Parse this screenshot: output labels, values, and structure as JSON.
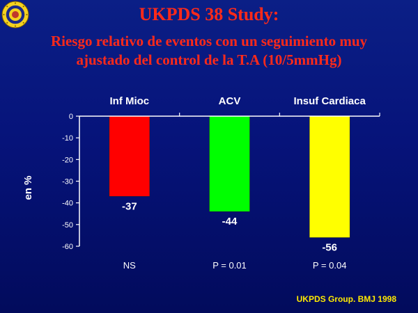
{
  "title": "UKPDS 38 Study:",
  "subtitle_lines": [
    "Riesgo relativo de eventos con un seguimiento muy",
    "ajustado del control de la T.A (10/5mmHg)"
  ],
  "source": "UKPDS Group. BMJ 1998",
  "chart_data": {
    "type": "bar",
    "title": "UKPDS 38 Study: Riesgo relativo de eventos con un seguimiento muy ajustado del control de la T.A (10/5mmHg)",
    "ylabel": "en %",
    "categories": [
      "Inf Mioc",
      "ACV",
      "Insuf Cardiaca"
    ],
    "values": [
      -37,
      -44,
      -56
    ],
    "data_labels": [
      "-37",
      "-44",
      "-56"
    ],
    "annotations": [
      "NS",
      "P = 0.01",
      "P = 0.04"
    ],
    "colors": [
      "#ff0000",
      "#00ff00",
      "#ffff00"
    ],
    "yticks": [
      0,
      -10,
      -20,
      -30,
      -40,
      -50,
      -60
    ],
    "ylim": [
      -60,
      0
    ],
    "grid": false,
    "category_axis_position": "top"
  }
}
